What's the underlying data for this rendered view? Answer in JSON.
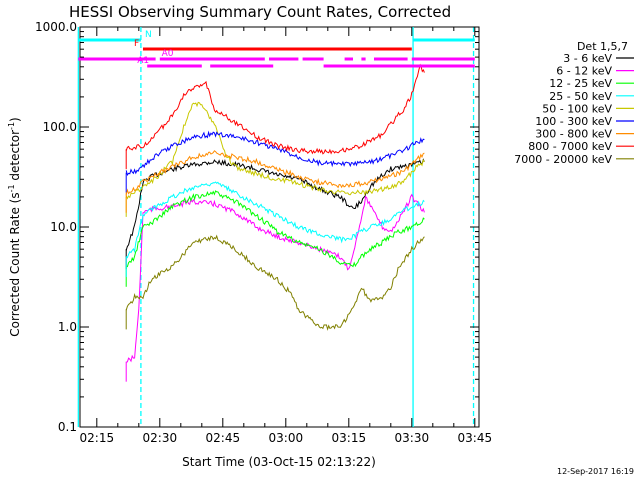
{
  "chart_data": {
    "type": "line",
    "title": "HESSI Observing Summary Count Rates, Corrected",
    "xlabel": "Start Time (03-Oct-15 02:13:22)",
    "ylabel": "Corrected Count Rate (s",
    "ylabel_sup": "-1",
    "ylabel_mid": " detector",
    "ylabel_sup2": "-1",
    "ylabel_end": ")",
    "y_scale": "log",
    "ylim": [
      0.1,
      1000
    ],
    "xlim_minutes": [
      -2,
      93
    ],
    "x_tick_minutes": [
      2,
      17,
      32,
      47,
      62,
      77,
      92
    ],
    "x_tick_labels": [
      "02:15",
      "02:30",
      "02:45",
      "03:00",
      "03:15",
      "03:30",
      "03:45"
    ],
    "y_tick_values": [
      0.1,
      1,
      10,
      100,
      1000
    ],
    "y_tick_labels": [
      "0.1",
      "1.0",
      "10.0",
      "100.0",
      "1000.0"
    ],
    "legend_title": "Det 1,5,7",
    "series": [
      {
        "name": "3 - 6 keV",
        "color": "#000000",
        "x": [
          9,
          11,
          13,
          15,
          20,
          25,
          30,
          35,
          40,
          45,
          50,
          55,
          60,
          63,
          65,
          67,
          70,
          72,
          74,
          77,
          80
        ],
        "y": [
          6,
          10,
          28,
          32,
          38,
          42,
          45,
          42,
          38,
          33,
          30,
          24,
          20,
          15,
          18,
          25,
          33,
          38,
          40,
          42,
          45
        ]
      },
      {
        "name": "6 - 12 keV",
        "color": "#ff00ff",
        "x": [
          9,
          11,
          12,
          13,
          15,
          20,
          25,
          30,
          35,
          40,
          45,
          50,
          55,
          60,
          62,
          64,
          66,
          68,
          70,
          72,
          74,
          77,
          80
        ],
        "y": [
          0.45,
          0.5,
          1.5,
          14,
          15,
          16,
          18,
          17,
          14,
          10,
          8,
          7,
          6,
          5,
          3.8,
          8,
          20,
          14,
          10,
          9,
          12,
          20,
          14
        ]
      },
      {
        "name": "12 - 25 keV",
        "color": "#00ff00",
        "x": [
          9,
          11,
          13,
          15,
          20,
          25,
          30,
          35,
          40,
          45,
          50,
          55,
          60,
          63,
          65,
          67,
          70,
          72,
          74,
          77,
          80
        ],
        "y": [
          4,
          5,
          10,
          11,
          16,
          20,
          22,
          18,
          13,
          9,
          7,
          6,
          4.5,
          4,
          5,
          6,
          7,
          8,
          9,
          10,
          12
        ]
      },
      {
        "name": "25 - 50 keV",
        "color": "#00ffff",
        "x": [
          9,
          11,
          13,
          15,
          20,
          25,
          30,
          35,
          40,
          45,
          50,
          55,
          60,
          63,
          65,
          67,
          70,
          72,
          74,
          77,
          80
        ],
        "y": [
          5,
          6,
          13,
          15,
          20,
          25,
          28,
          22,
          17,
          13,
          10,
          8.5,
          7.5,
          8,
          9,
          10,
          11,
          12,
          14,
          16,
          18
        ]
      },
      {
        "name": "50 - 100 keV",
        "color": "#c8c800",
        "x": [
          9,
          11,
          13,
          15,
          20,
          23,
          25,
          27,
          30,
          33,
          35,
          40,
          45,
          50,
          55,
          60,
          65,
          70,
          75,
          78,
          80
        ],
        "y": [
          20,
          22,
          25,
          28,
          45,
          110,
          180,
          160,
          110,
          50,
          40,
          34,
          30,
          27,
          24,
          22,
          22,
          24,
          28,
          40,
          45
        ]
      },
      {
        "name": "100 - 300 keV",
        "color": "#0000ff",
        "x": [
          9,
          11,
          13,
          15,
          20,
          25,
          30,
          35,
          40,
          45,
          50,
          55,
          60,
          65,
          70,
          75,
          78,
          80
        ],
        "y": [
          35,
          36,
          40,
          48,
          65,
          80,
          85,
          80,
          70,
          60,
          50,
          44,
          42,
          43,
          48,
          58,
          70,
          75
        ]
      },
      {
        "name": "300 - 800 keV",
        "color": "#ff8c00",
        "x": [
          9,
          11,
          13,
          15,
          20,
          25,
          30,
          35,
          40,
          45,
          50,
          55,
          60,
          65,
          70,
          75,
          78,
          80
        ],
        "y": [
          22,
          24,
          28,
          32,
          40,
          50,
          55,
          50,
          45,
          38,
          32,
          28,
          26,
          27,
          30,
          36,
          46,
          55
        ]
      },
      {
        "name": "800 - 7000 keV",
        "color": "#ff0000",
        "x": [
          9,
          11,
          13,
          15,
          20,
          23,
          25,
          27,
          28,
          30,
          35,
          40,
          45,
          50,
          55,
          60,
          65,
          70,
          75,
          77,
          78,
          79,
          80
        ],
        "y": [
          60,
          62,
          65,
          75,
          130,
          220,
          240,
          260,
          280,
          150,
          110,
          80,
          65,
          58,
          57,
          58,
          65,
          85,
          150,
          210,
          300,
          400,
          350
        ]
      },
      {
        "name": "7000 - 20000 keV",
        "color": "#808000",
        "x": [
          9,
          11,
          13,
          15,
          20,
          25,
          30,
          35,
          40,
          45,
          48,
          50,
          55,
          60,
          63,
          65,
          67,
          70,
          72,
          74,
          77,
          80
        ],
        "y": [
          1.5,
          2,
          2,
          3,
          4,
          7,
          8,
          6,
          4,
          3,
          2.2,
          1.5,
          1,
          1,
          1.5,
          2.5,
          1.8,
          2,
          2.5,
          4,
          6,
          8
        ]
      }
    ],
    "vertical_lines": [
      {
        "minute": -2.4,
        "color": "#00ffff",
        "style": "solid"
      },
      {
        "minute": 12.5,
        "color": "#00ffff",
        "style": "dashed"
      },
      {
        "minute": 77.3,
        "color": "#00ffff",
        "style": "solid"
      },
      {
        "minute": 91.7,
        "color": "#00ffff",
        "style": "dashed"
      }
    ],
    "flag_bars": [
      {
        "label": "N",
        "color": "#00ffff",
        "segments": [
          [
            -2.4,
            12.5
          ],
          [
            77.3,
            92
          ]
        ],
        "row": "n"
      },
      {
        "label": "F",
        "color": "#ff0000",
        "segments": [
          [
            13,
            77
          ]
        ],
        "row": "f"
      },
      {
        "label": "A0",
        "color": "#ff00ff",
        "segments": [
          [
            -2.4,
            16
          ],
          [
            17,
            42
          ],
          [
            43,
            50
          ],
          [
            51,
            56
          ],
          [
            61,
            63
          ],
          [
            65,
            66
          ],
          [
            68,
            76
          ],
          [
            77,
            92
          ]
        ],
        "row": "a0"
      },
      {
        "label": "A1",
        "color": "#ff00ff",
        "segments": [
          [
            14,
            27
          ],
          [
            29,
            44
          ],
          [
            56,
            92
          ]
        ],
        "row": "a1"
      }
    ],
    "timestamp": "12-Sep-2017 16:19"
  }
}
